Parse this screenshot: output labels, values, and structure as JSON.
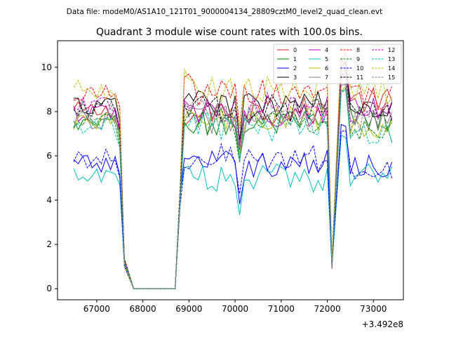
{
  "header": {
    "file_label": "Data file: modeM0/AS1A10_121T01_9000004134_28809cztM0_level2_quad_clean.evt"
  },
  "chart_data": {
    "type": "line",
    "title": "Quadrant 3 module wise count rates with 100.0s bins.",
    "xlabel": "",
    "ylabel": "",
    "offset_text": "+3.492e8",
    "xlim": [
      66150,
      73650
    ],
    "ylim": [
      -0.5,
      11.2
    ],
    "xticks": [
      67000,
      68000,
      69000,
      70000,
      71000,
      72000,
      73000
    ],
    "xtick_labels": [
      "67000",
      "68000",
      "69000",
      "70000",
      "71000",
      "72000",
      "73000"
    ],
    "yticks": [
      0,
      2,
      4,
      6,
      8,
      10
    ],
    "ytick_labels": [
      "0",
      "2",
      "4",
      "6",
      "8",
      "10"
    ],
    "grid": false,
    "legend_position": "top-right",
    "legend_columns": 4,
    "segments": [
      {
        "start": 66500,
        "end": 67600,
        "n": 12
      },
      {
        "start": 67700,
        "end": 68800,
        "n": 12
      },
      {
        "start": 68800,
        "end": 72100,
        "n": 34
      },
      {
        "start": 72200,
        "end": 72400,
        "n": 3
      },
      {
        "start": 72400,
        "end": 73400,
        "n": 11
      }
    ],
    "series": [
      {
        "name": "0",
        "color": "#d62020",
        "dash": "solid",
        "level": 8.0,
        "p1": 7.7,
        "p2": 8.5
      },
      {
        "name": "1",
        "color": "#008000",
        "dash": "solid",
        "level": 7.4,
        "p1": 7.3,
        "p2": 7.7
      },
      {
        "name": "2",
        "color": "#0000ff",
        "dash": "solid",
        "level": 5.6,
        "p1": 5.9,
        "p2": 5.6
      },
      {
        "name": "3",
        "color": "#000000",
        "dash": "solid",
        "level": 8.3,
        "p1": 8.8,
        "p2": 8.2
      },
      {
        "name": "4",
        "color": "#bf00bf",
        "dash": "solid",
        "level": 7.9,
        "p1": 8.2,
        "p2": 8.2
      },
      {
        "name": "5",
        "color": "#00bfbf",
        "dash": "solid",
        "level": 5.0,
        "p1": 5.4,
        "p2": 5.2
      },
      {
        "name": "6",
        "color": "#bfbf00",
        "dash": "solid",
        "level": 7.6,
        "p1": 7.9,
        "p2": 7.2
      },
      {
        "name": "7",
        "color": "#808080",
        "dash": "solid",
        "level": 7.6,
        "p1": 7.8,
        "p2": 7.5
      },
      {
        "name": "8",
        "color": "#ff0000",
        "dash": "dashed",
        "level": 8.8,
        "p1": 9.4,
        "p2": 8.6
      },
      {
        "name": "9",
        "color": "#008000",
        "dash": "dashed",
        "level": 7.5,
        "p1": 7.6,
        "p2": 7.2
      },
      {
        "name": "10",
        "color": "#0000ff",
        "dash": "dashed",
        "level": 5.9,
        "p1": 5.8,
        "p2": 5.5
      },
      {
        "name": "11",
        "color": "#000000",
        "dash": "dashed",
        "level": 8.2,
        "p1": 8.1,
        "p2": 8.0
      },
      {
        "name": "12",
        "color": "#bf00bf",
        "dash": "dashed",
        "level": 8.2,
        "p1": 8.4,
        "p2": 8.0
      },
      {
        "name": "13",
        "color": "#00bfbf",
        "dash": "dashed",
        "level": 7.3,
        "p1": 7.6,
        "p2": 6.9
      },
      {
        "name": "14",
        "color": "#bfbf00",
        "dash": "dashed",
        "level": 9.0,
        "p1": 9.6,
        "p2": 8.9
      },
      {
        "name": "15",
        "color": "#808080",
        "dash": "dashed",
        "level": 8.0,
        "p1": 8.3,
        "p2": 7.7
      }
    ]
  }
}
